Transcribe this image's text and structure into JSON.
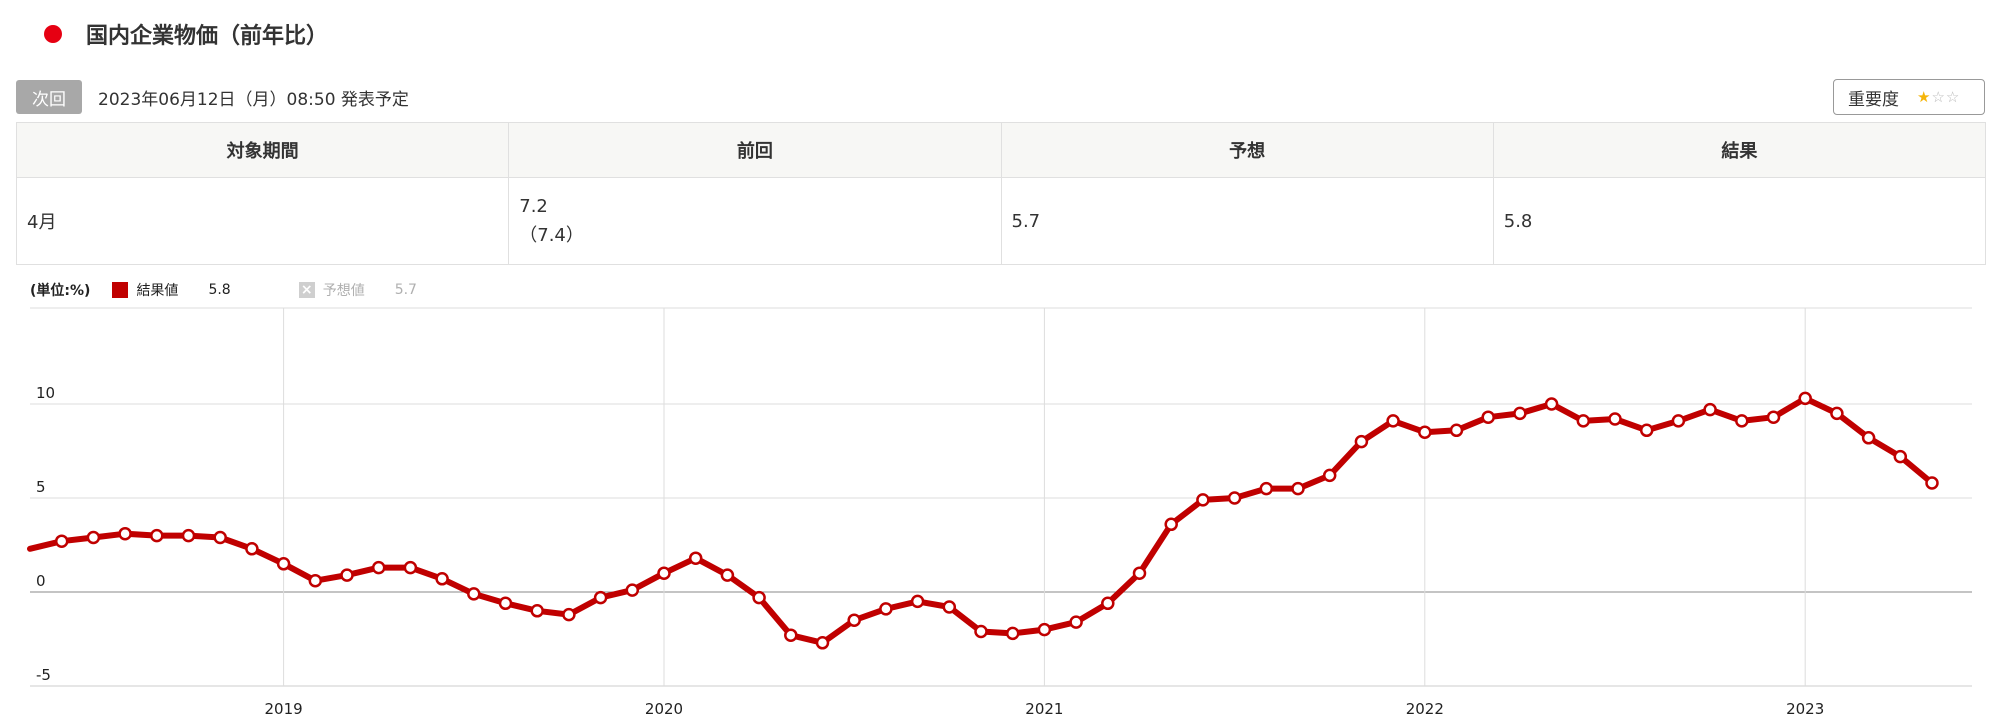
{
  "header": {
    "title": "国内企業物価（前年比）"
  },
  "next": {
    "badge": "次回",
    "text": "2023年06月12日（月）08:50 発表予定"
  },
  "importance": {
    "label": "重要度",
    "stars_filled": 1,
    "stars_total": 3
  },
  "table": {
    "headers": [
      "対象期間",
      "前回",
      "予想",
      "結果"
    ],
    "period": "4月",
    "previous": "7.2",
    "previous_revised": "（7.4）",
    "forecast": "5.7",
    "result": "5.8"
  },
  "legend": {
    "unit": "(単位:%)",
    "result_label": "結果値",
    "result_value": "5.8",
    "forecast_label": "予想値",
    "forecast_value": "5.7",
    "forecast_icon": "x-icon"
  },
  "chart_data": {
    "type": "line",
    "color": "#c00000",
    "ylim": [
      -5,
      15
    ],
    "yticks": [
      10,
      5,
      0,
      -5
    ],
    "xticks": [
      "2019",
      "2020",
      "2021",
      "2022",
      "2023"
    ],
    "x_start": "2018-05",
    "series": [
      {
        "name": "結果値",
        "values": [
          2.3,
          2.7,
          2.9,
          3.1,
          3.0,
          3.0,
          2.9,
          2.3,
          1.5,
          0.6,
          0.9,
          1.3,
          1.3,
          0.7,
          -0.1,
          -0.6,
          -1.0,
          -1.2,
          -0.3,
          0.1,
          1.0,
          1.8,
          0.9,
          -0.3,
          -2.3,
          -2.7,
          -1.5,
          -0.9,
          -0.5,
          -0.8,
          -2.1,
          -2.2,
          -2.0,
          -1.6,
          -0.6,
          1.0,
          3.6,
          4.9,
          5.0,
          5.5,
          5.5,
          6.2,
          8.0,
          9.1,
          8.5,
          8.6,
          9.3,
          9.5,
          10.0,
          9.1,
          9.2,
          8.6,
          9.1,
          9.7,
          9.1,
          9.3,
          10.3,
          9.5,
          8.2,
          7.2,
          5.8
        ]
      }
    ]
  }
}
